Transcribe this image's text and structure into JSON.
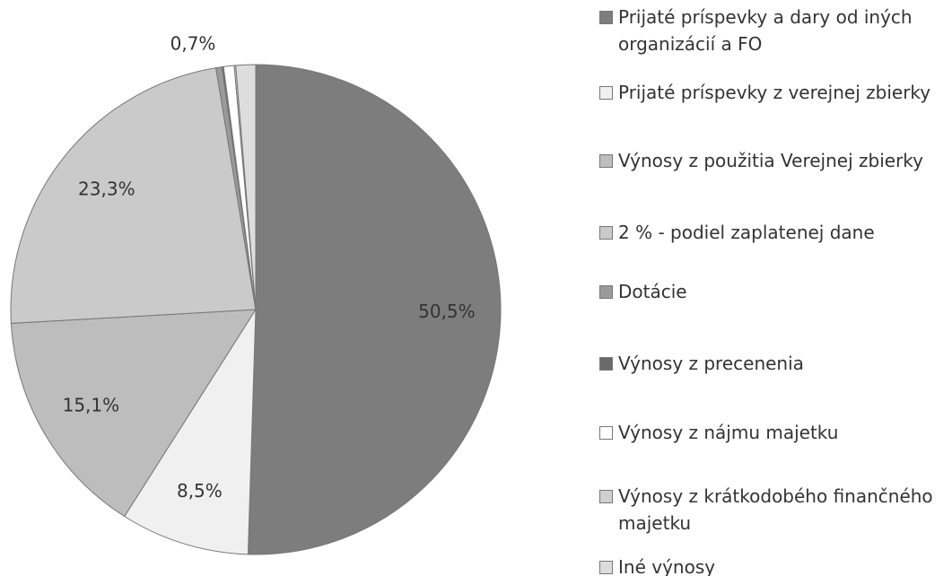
{
  "chart_data": {
    "type": "pie",
    "categories": [
      "Prijaté príspevky a dary od iných organizácií a FO",
      "Prijaté príspevky z verejnej zbierky",
      "Výnosy z použitia Verejnej zbierky",
      "2 % - podiel zaplatenej dane",
      "Dotácie",
      "Výnosy z precenenia",
      "Výnosy z nájmu majetku",
      "Výnosy z krátkodobého finančného majetku",
      "Iné výnosy"
    ],
    "values": [
      50.5,
      8.5,
      15.1,
      23.3,
      0.4,
      0.1,
      0.7,
      0.1,
      1.3
    ],
    "value_labels": [
      "50,5%",
      "8,5%",
      "15,1%",
      "23,3%",
      null,
      null,
      "0,7%",
      null,
      null
    ],
    "colors": [
      "#7d7d7d",
      "#f0f0f0",
      "#bdbdbd",
      "#cacaca",
      "#9a9a9a",
      "#6a6a6a",
      "#ffffff",
      "#d0d0d0",
      "#dddddd"
    ]
  }
}
